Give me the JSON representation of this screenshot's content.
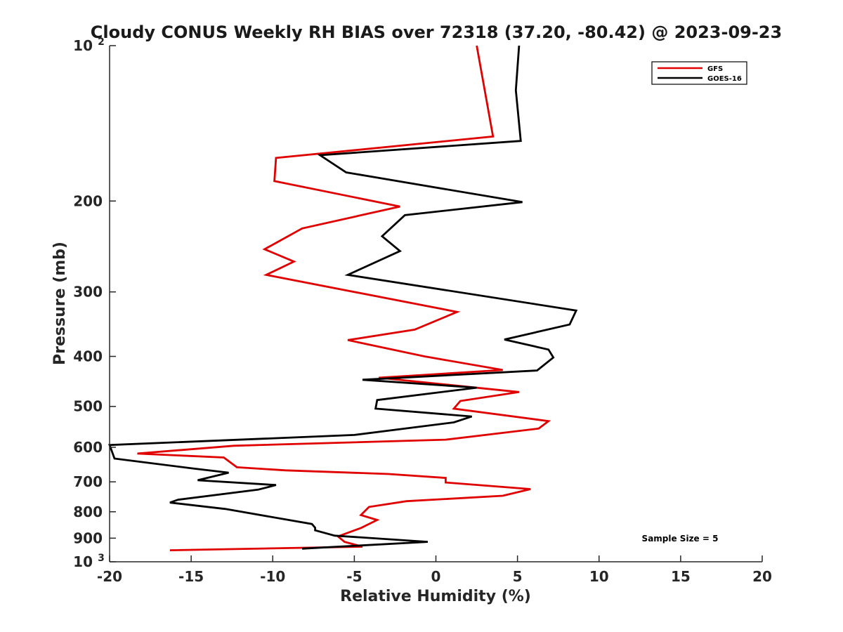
{
  "chart_data": {
    "type": "line",
    "title": "Cloudy CONUS Weekly RH BIAS over 72318 (37.20, -80.42) @ 2023-09-23",
    "xlabel": "Relative Humidity (%)",
    "ylabel": "Pressure (mb)",
    "xlim": [
      -20,
      20
    ],
    "ylim": [
      100,
      1000
    ],
    "yscale": "log",
    "y_reversed": true,
    "grid": false,
    "legend_position": "top-right",
    "x_ticks": [
      "-20",
      "-15",
      "-10",
      "-5",
      "0",
      "5",
      "10",
      "15",
      "20"
    ],
    "y_ticks": [
      {
        "value": 100,
        "label": "10",
        "sup": "2"
      },
      {
        "value": 200,
        "label": "200"
      },
      {
        "value": 300,
        "label": "300"
      },
      {
        "value": 400,
        "label": "400"
      },
      {
        "value": 500,
        "label": "500"
      },
      {
        "value": 600,
        "label": "600"
      },
      {
        "value": 700,
        "label": "700"
      },
      {
        "value": 800,
        "label": "800"
      },
      {
        "value": 900,
        "label": "900"
      },
      {
        "value": 1000,
        "label": "10",
        "sup": "3"
      }
    ],
    "series": [
      {
        "name": "GFS",
        "color": "#e00000",
        "x": [
          2.5,
          3.5,
          -9.8,
          -9.9,
          -2.2,
          -8.2,
          -10.5,
          -8.7,
          -10.4,
          1.3,
          -1.3,
          -5.4,
          -0.7,
          4.1,
          -3.5,
          5.1,
          1.5,
          1.1,
          6.9,
          6.3,
          0.6,
          -12.4,
          -18.3,
          -13.0,
          -12.2,
          -9.2,
          -2.9,
          0.6,
          0.6,
          5.8,
          4.1,
          -1.8,
          -4.1,
          -4.6,
          -3.6,
          -4.6,
          -6.0,
          -5.6,
          -4.5,
          -16.3
        ],
        "y": [
          100,
          150,
          165,
          183,
          205,
          226,
          248,
          262,
          278,
          328,
          355,
          372,
          400,
          425,
          440,
          469,
          488,
          505,
          534,
          552,
          580,
          596,
          617,
          628,
          656,
          665,
          676,
          688,
          702,
          723,
          745,
          763,
          783,
          812,
          830,
          860,
          893,
          915,
          935,
          950
        ]
      },
      {
        "name": "GOES-16",
        "color": "#000000",
        "x": [
          5.1,
          4.9,
          5.2,
          -7.1,
          -5.5,
          5.3,
          -1.9,
          -3.3,
          -2.2,
          -5.4,
          8.6,
          8.2,
          4.2,
          6.9,
          7.2,
          6.2,
          -4.5,
          2.5,
          -3.6,
          -3.7,
          2.2,
          1.1,
          -5.0,
          -20.0,
          -19.7,
          -14.8,
          -12.7,
          -14.6,
          -9.8,
          -10.9,
          -15.8,
          -16.3,
          -12.9,
          -7.6,
          -7.4,
          -7.4,
          -6.2,
          -0.5,
          -8.2
        ],
        "y": [
          100,
          122,
          153,
          163,
          176,
          201,
          213,
          234,
          250,
          278,
          326,
          347,
          371,
          388,
          402,
          426,
          444,
          460,
          486,
          505,
          523,
          537,
          568,
          594,
          631,
          660,
          672,
          695,
          710,
          725,
          758,
          768,
          790,
          845,
          859,
          869,
          890,
          915,
          943
        ]
      }
    ],
    "annotation": "Sample Size = 5"
  }
}
